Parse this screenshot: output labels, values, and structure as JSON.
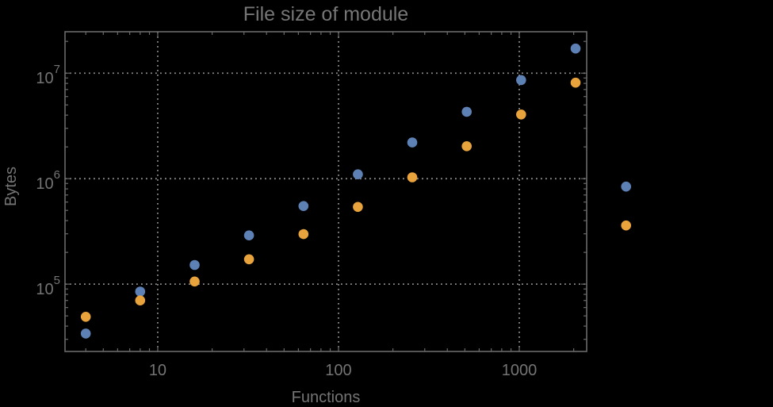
{
  "title": "File size of module",
  "colors": {
    "background": "#000000",
    "frame": "#6a6a6a",
    "gridline": "#8f8f8f",
    "tick": "#6a6a6a",
    "text": "#747474",
    "series_blue": "#5E81B5",
    "series_orange": "#E8A33C"
  },
  "chart_data": {
    "type": "scatter",
    "title": "File size of module",
    "xlabel": "Functions",
    "ylabel": "Bytes",
    "x_scale": "log",
    "y_scale": "log",
    "xlim": [
      3.07,
      2360
    ],
    "ylim": [
      23000,
      24700000
    ],
    "grid": "dotted lines at decade ticks, both axes",
    "legend": "none",
    "x_ticks": [
      {
        "label": "10",
        "value": 10
      },
      {
        "label": "100",
        "value": 100
      },
      {
        "label": "1000",
        "value": 1000
      }
    ],
    "y_ticks": [
      {
        "base": "10",
        "exp": "5",
        "value": 100000
      },
      {
        "base": "10",
        "exp": "6",
        "value": 1000000
      },
      {
        "base": "10",
        "exp": "7",
        "value": 10000000
      }
    ],
    "series": [
      {
        "name": "blue",
        "color": "#5E81B5",
        "points": [
          [
            4,
            34000
          ],
          [
            8,
            85000
          ],
          [
            16,
            152000
          ],
          [
            32,
            290000
          ],
          [
            64,
            550000
          ],
          [
            128,
            1100000
          ],
          [
            256,
            2200000
          ],
          [
            512,
            4300000
          ],
          [
            1024,
            8600000
          ],
          [
            2048,
            17100000
          ],
          [
            3900,
            840000
          ]
        ]
      },
      {
        "name": "orange",
        "color": "#E8A33C",
        "points": [
          [
            4,
            49000
          ],
          [
            8,
            70000
          ],
          [
            16,
            106000
          ],
          [
            32,
            172000
          ],
          [
            64,
            298000
          ],
          [
            128,
            540000
          ],
          [
            256,
            1030000
          ],
          [
            512,
            2030000
          ],
          [
            1024,
            4060000
          ],
          [
            2048,
            8130000
          ],
          [
            3900,
            360000
          ]
        ]
      }
    ]
  }
}
